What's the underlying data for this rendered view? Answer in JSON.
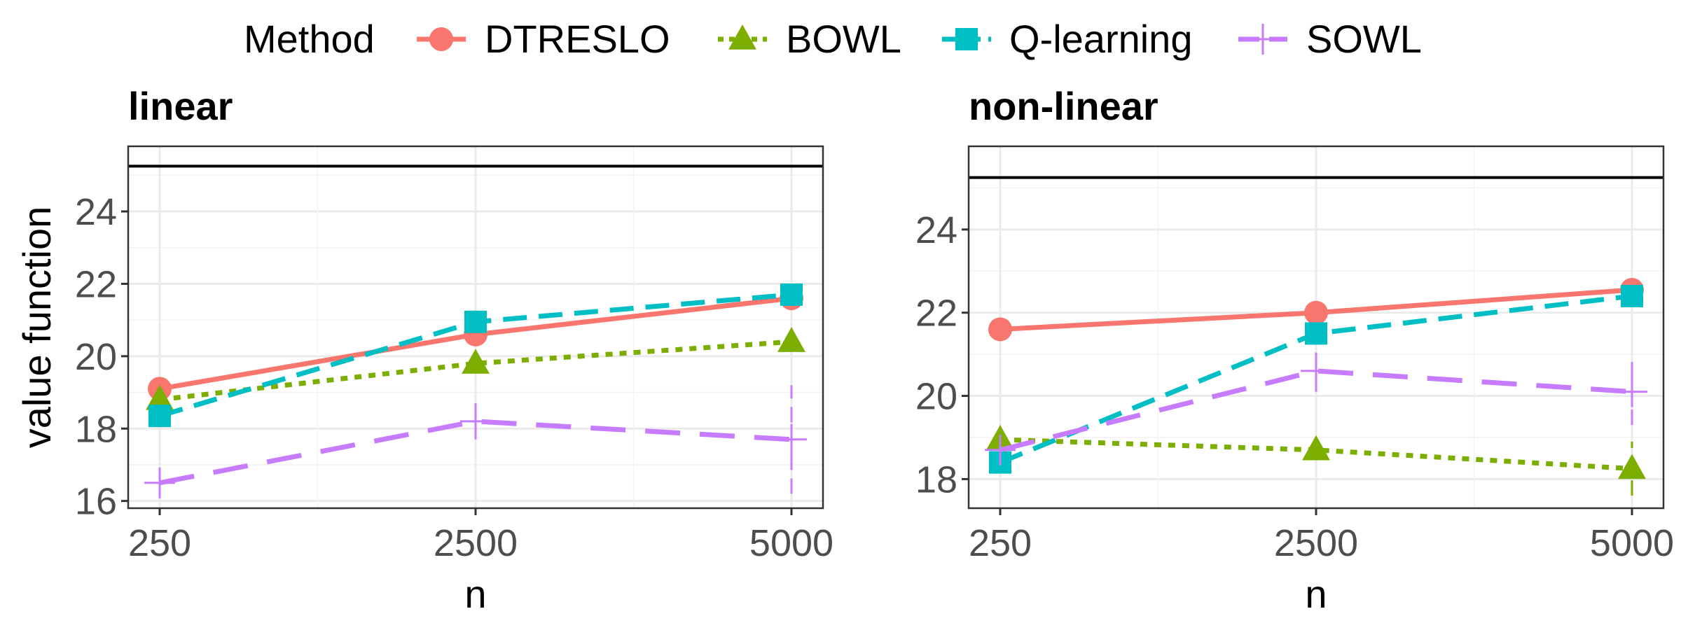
{
  "legend": {
    "title": "Method",
    "entries": [
      {
        "name": "DTRESLO",
        "color": "#F8766D",
        "dash": "solid",
        "marker": "circle"
      },
      {
        "name": "BOWL",
        "color": "#7CAE00",
        "dash": "dotted",
        "marker": "triangle"
      },
      {
        "name": "Q-learning",
        "color": "#00BFC4",
        "dash": "dashed",
        "marker": "square"
      },
      {
        "name": "SOWL",
        "color": "#C77CFF",
        "dash": "longdash",
        "marker": "plus"
      }
    ]
  },
  "chart_data": [
    {
      "type": "line",
      "title": "linear",
      "xlabel": "n",
      "ylabel": "value function",
      "x": [
        250,
        2500,
        5000
      ],
      "xticks": [
        "250",
        "2500",
        "5000"
      ],
      "ylim": [
        15.8,
        25.8
      ],
      "yticks": [
        16,
        18,
        20,
        22,
        24
      ],
      "reference_line": 25.25,
      "grid": true,
      "series": [
        {
          "name": "DTRESLO",
          "values": [
            19.1,
            20.6,
            21.6
          ]
        },
        {
          "name": "BOWL",
          "values": [
            18.8,
            19.8,
            20.4
          ]
        },
        {
          "name": "Q-learning",
          "values": [
            18.35,
            20.95,
            21.7
          ]
        },
        {
          "name": "SOWL",
          "values": [
            16.5,
            18.2,
            17.7
          ],
          "error": [
            [
              16.1,
              16.9
            ],
            [
              17.7,
              18.7
            ],
            [
              16.2,
              19.2
            ]
          ]
        }
      ]
    },
    {
      "type": "line",
      "title": "non-linear",
      "xlabel": "n",
      "ylabel": "",
      "x": [
        250,
        2500,
        5000
      ],
      "xticks": [
        "250",
        "2500",
        "5000"
      ],
      "ylim": [
        17.3,
        26.0
      ],
      "yticks": [
        18,
        20,
        22,
        24
      ],
      "reference_line": 25.25,
      "grid": true,
      "series": [
        {
          "name": "DTRESLO",
          "values": [
            21.6,
            22.0,
            22.55
          ]
        },
        {
          "name": "BOWL",
          "values": [
            18.95,
            18.7,
            18.25
          ],
          "error": [
            [
              18.8,
              19.1
            ],
            [
              18.5,
              18.9
            ],
            [
              17.6,
              18.9
            ]
          ]
        },
        {
          "name": "Q-learning",
          "values": [
            18.4,
            21.5,
            22.4
          ]
        },
        {
          "name": "SOWL",
          "values": [
            18.7,
            20.6,
            20.1
          ],
          "error": [
            [
              18.4,
              19.0
            ],
            [
              20.1,
              21.1
            ],
            [
              19.3,
              20.9
            ]
          ]
        }
      ]
    }
  ]
}
